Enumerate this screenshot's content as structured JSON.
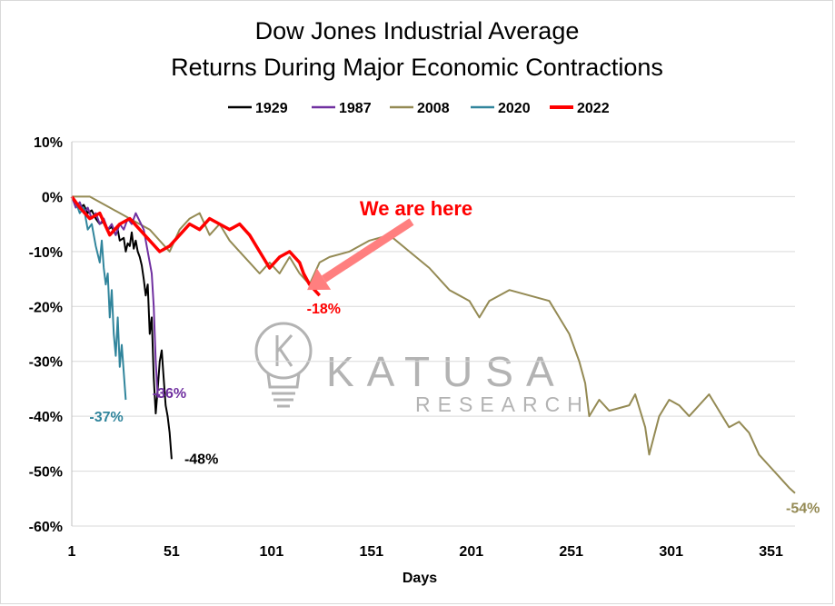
{
  "chart_data": {
    "type": "line",
    "title": [
      "Dow Jones Industrial Average",
      "Returns During Major Economic Contractions"
    ],
    "xlabel": "Days",
    "ylabel": "",
    "xlim": [
      1,
      363
    ],
    "ylim": [
      -60,
      10
    ],
    "x_ticks": [
      1,
      51,
      101,
      151,
      201,
      251,
      301,
      351
    ],
    "y_ticks": [
      10,
      0,
      -10,
      -20,
      -30,
      -40,
      -50,
      -60
    ],
    "y_tick_format": "percent",
    "grid": "horizontal",
    "legend_position": "top",
    "series": [
      {
        "name": "1929",
        "color": "#000000",
        "end_label": "-48%",
        "points": [
          [
            1,
            0
          ],
          [
            3,
            -1
          ],
          [
            5,
            -2
          ],
          [
            7,
            -1.5
          ],
          [
            9,
            -3
          ],
          [
            11,
            -2.5
          ],
          [
            13,
            -4
          ],
          [
            15,
            -5
          ],
          [
            17,
            -4.5
          ],
          [
            19,
            -6
          ],
          [
            21,
            -5.5
          ],
          [
            23,
            -7
          ],
          [
            24,
            -6
          ],
          [
            25,
            -8
          ],
          [
            27,
            -7.5
          ],
          [
            28,
            -10
          ],
          [
            29,
            -8.5
          ],
          [
            30,
            -9
          ],
          [
            31,
            -6.5
          ],
          [
            32,
            -9.5
          ],
          [
            33,
            -8
          ],
          [
            34,
            -10
          ],
          [
            35,
            -11
          ],
          [
            36,
            -12.5
          ],
          [
            37,
            -15
          ],
          [
            38,
            -18
          ],
          [
            39,
            -16
          ],
          [
            40,
            -25
          ],
          [
            41,
            -22
          ],
          [
            42,
            -33
          ],
          [
            43,
            -39.5
          ],
          [
            44,
            -35
          ],
          [
            45,
            -30
          ],
          [
            46,
            -28
          ],
          [
            47,
            -33
          ],
          [
            48,
            -38
          ],
          [
            49,
            -40
          ],
          [
            50,
            -43
          ],
          [
            51,
            -47.8
          ]
        ]
      },
      {
        "name": "1987",
        "color": "#7030a0",
        "end_label": "-36%",
        "points": [
          [
            1,
            0
          ],
          [
            3,
            -2
          ],
          [
            5,
            -1
          ],
          [
            7,
            -3
          ],
          [
            9,
            -2
          ],
          [
            11,
            -4
          ],
          [
            13,
            -3
          ],
          [
            15,
            -5
          ],
          [
            17,
            -4
          ],
          [
            19,
            -6
          ],
          [
            21,
            -5
          ],
          [
            23,
            -7
          ],
          [
            25,
            -5
          ],
          [
            27,
            -6
          ],
          [
            29,
            -4
          ],
          [
            31,
            -5
          ],
          [
            33,
            -3
          ],
          [
            35,
            -4.5
          ],
          [
            37,
            -6
          ],
          [
            38,
            -8
          ],
          [
            39,
            -10
          ],
          [
            40,
            -12
          ],
          [
            41,
            -14
          ],
          [
            42,
            -20
          ],
          [
            43,
            -30
          ],
          [
            44,
            -36.5
          ],
          [
            45,
            -36
          ]
        ]
      },
      {
        "name": "2008",
        "color": "#948a54",
        "end_label": "-54%",
        "points": [
          [
            1,
            0
          ],
          [
            10,
            0
          ],
          [
            20,
            -2
          ],
          [
            30,
            -4
          ],
          [
            40,
            -6
          ],
          [
            50,
            -10
          ],
          [
            55,
            -6
          ],
          [
            60,
            -4
          ],
          [
            65,
            -3
          ],
          [
            70,
            -7
          ],
          [
            75,
            -5
          ],
          [
            80,
            -8
          ],
          [
            85,
            -10
          ],
          [
            90,
            -12
          ],
          [
            95,
            -14
          ],
          [
            100,
            -12
          ],
          [
            105,
            -14
          ],
          [
            110,
            -11
          ],
          [
            115,
            -14
          ],
          [
            120,
            -16
          ],
          [
            125,
            -12
          ],
          [
            130,
            -11
          ],
          [
            140,
            -10
          ],
          [
            150,
            -8
          ],
          [
            160,
            -7
          ],
          [
            170,
            -10
          ],
          [
            180,
            -13
          ],
          [
            190,
            -17
          ],
          [
            200,
            -19
          ],
          [
            205,
            -22
          ],
          [
            210,
            -19
          ],
          [
            220,
            -17
          ],
          [
            230,
            -18
          ],
          [
            240,
            -19
          ],
          [
            245,
            -22
          ],
          [
            250,
            -25
          ],
          [
            255,
            -30
          ],
          [
            258,
            -34
          ],
          [
            260,
            -40
          ],
          [
            265,
            -37
          ],
          [
            270,
            -39
          ],
          [
            280,
            -38
          ],
          [
            283,
            -36
          ],
          [
            288,
            -42
          ],
          [
            290,
            -47
          ],
          [
            295,
            -40
          ],
          [
            300,
            -37
          ],
          [
            305,
            -38
          ],
          [
            310,
            -40
          ],
          [
            320,
            -36
          ],
          [
            325,
            -39
          ],
          [
            330,
            -42
          ],
          [
            335,
            -41
          ],
          [
            340,
            -43
          ],
          [
            345,
            -47
          ],
          [
            350,
            -49
          ],
          [
            355,
            -51
          ],
          [
            360,
            -53
          ],
          [
            363,
            -54
          ]
        ]
      },
      {
        "name": "2020",
        "color": "#31859c",
        "end_label": "-37%",
        "points": [
          [
            1,
            0
          ],
          [
            3,
            -1
          ],
          [
            5,
            -3
          ],
          [
            7,
            -2
          ],
          [
            9,
            -6
          ],
          [
            11,
            -5
          ],
          [
            13,
            -9
          ],
          [
            15,
            -12
          ],
          [
            16,
            -8
          ],
          [
            17,
            -13
          ],
          [
            18,
            -16
          ],
          [
            19,
            -14
          ],
          [
            20,
            -22
          ],
          [
            21,
            -17
          ],
          [
            22,
            -25
          ],
          [
            23,
            -29
          ],
          [
            24,
            -22
          ],
          [
            25,
            -31
          ],
          [
            26,
            -27
          ],
          [
            27,
            -32
          ],
          [
            28,
            -37
          ]
        ]
      },
      {
        "name": "2022",
        "color": "#ff0000",
        "end_label": "-18%",
        "points": [
          [
            1,
            0
          ],
          [
            5,
            -2
          ],
          [
            10,
            -4
          ],
          [
            15,
            -3
          ],
          [
            20,
            -7
          ],
          [
            25,
            -5
          ],
          [
            30,
            -4
          ],
          [
            35,
            -6
          ],
          [
            40,
            -8
          ],
          [
            45,
            -10
          ],
          [
            50,
            -9
          ],
          [
            55,
            -7
          ],
          [
            60,
            -5
          ],
          [
            65,
            -6
          ],
          [
            70,
            -4
          ],
          [
            75,
            -5
          ],
          [
            80,
            -6
          ],
          [
            85,
            -5
          ],
          [
            90,
            -7
          ],
          [
            95,
            -10
          ],
          [
            100,
            -13
          ],
          [
            105,
            -11
          ],
          [
            110,
            -10
          ],
          [
            115,
            -12
          ],
          [
            117,
            -14
          ],
          [
            120,
            -16
          ],
          [
            125,
            -18
          ]
        ]
      }
    ],
    "annotations": [
      {
        "text": "We are here",
        "color": "#ff0000",
        "arrow_color": "#ff7f7f",
        "points_to": [
          117,
          -17
        ]
      }
    ]
  },
  "watermark": {
    "line1": "KATUSA",
    "line2": "RESEARCH",
    "icon": "lightbulb-k-logo"
  }
}
